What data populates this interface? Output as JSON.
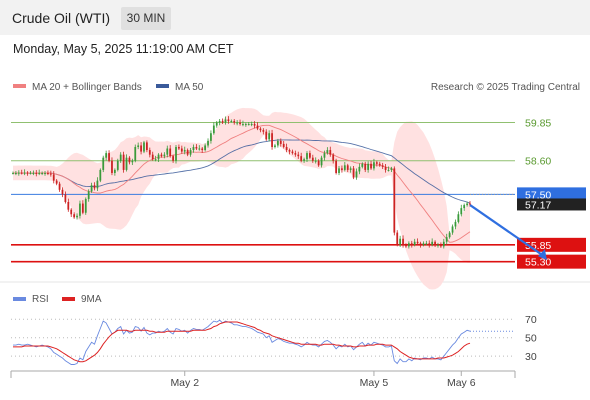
{
  "header": {
    "title": "Crude Oil (WTI)",
    "timeframe": "30 MIN"
  },
  "timestamp": "Monday, May 5, 2025 11:19:00 AM CET",
  "legend": {
    "bollinger": "MA 20 + Bollinger Bands",
    "ma50": "MA 50",
    "rsi": "RSI",
    "ma9": "9MA",
    "credit": "Research © 2025 Trading Central"
  },
  "colors": {
    "candle_up": "#3a9a3a",
    "candle_down": "#cc2222",
    "ma20": "#f08080",
    "ma50": "#3a5a9a",
    "band_fill": "#ffdede",
    "resistance": "#90c070",
    "support": "#dd1111",
    "current_line": "#3a7be0",
    "rsi_line": "#6a8ae0",
    "rsi_ma": "#dd2222"
  },
  "chart_data": [
    {
      "type": "candlestick",
      "y_range": [
        54.7,
        60.75
      ],
      "x_labels": [
        {
          "label": "May 2",
          "index": 59
        },
        {
          "label": "May 5",
          "index": 124
        },
        {
          "label": "May 6",
          "index": 154
        }
      ],
      "levels": [
        {
          "name": "resistance-2",
          "value": 59.85,
          "label": "59.85",
          "style": "resistance"
        },
        {
          "name": "resistance-1",
          "value": 58.6,
          "label": "58.60",
          "style": "resistance"
        },
        {
          "name": "pivot",
          "value": 57.5,
          "label": "57.50",
          "style": "pivot"
        },
        {
          "name": "support-1",
          "value": 55.85,
          "label": "55.85",
          "style": "support"
        },
        {
          "name": "support-2",
          "value": 55.3,
          "label": "55.30",
          "style": "support"
        }
      ],
      "last_price": {
        "value": 57.17,
        "label": "57.17"
      },
      "forecast_arrow": {
        "from": [
          156,
          57.15
        ],
        "to": [
          169,
          55.35
        ]
      },
      "candles_close": [
        58.2,
        58.2,
        58.21,
        58.2,
        58.21,
        58.2,
        58.2,
        58.2,
        58.18,
        58.2,
        58.2,
        58.2,
        58.18,
        58.15,
        57.95,
        57.85,
        57.65,
        57.5,
        57.25,
        57.0,
        56.85,
        56.75,
        56.8,
        57.2,
        56.9,
        57.35,
        57.6,
        57.8,
        57.7,
        57.95,
        58.3,
        58.7,
        58.85,
        58.6,
        58.2,
        58.3,
        58.6,
        58.8,
        58.3,
        58.7,
        58.55,
        58.6,
        59.05,
        59.1,
        58.9,
        59.2,
        58.95,
        58.8,
        58.65,
        58.65,
        58.8,
        58.75,
        58.8,
        59.0,
        58.75,
        58.6,
        59.05,
        59.0,
        58.9,
        58.95,
        58.8,
        58.95,
        59.05,
        59.0,
        59.0,
        58.95,
        59.1,
        59.25,
        59.5,
        59.75,
        59.85,
        59.9,
        59.85,
        59.95,
        59.9,
        59.9,
        59.85,
        59.85,
        59.8,
        59.8,
        59.8,
        59.8,
        59.8,
        59.75,
        59.65,
        59.6,
        59.55,
        59.3,
        59.5,
        59.05,
        59.1,
        59.25,
        59.15,
        59.05,
        58.95,
        58.9,
        58.85,
        58.8,
        58.75,
        58.6,
        58.65,
        58.85,
        58.7,
        58.6,
        58.6,
        58.45,
        58.7,
        58.85,
        58.95,
        58.8,
        58.6,
        58.2,
        58.35,
        58.3,
        58.45,
        58.3,
        58.35,
        58.05,
        58.25,
        58.4,
        58.5,
        58.3,
        58.5,
        58.35,
        58.55,
        58.5,
        58.45,
        58.4,
        58.3,
        58.3,
        58.35,
        56.25,
        55.85,
        56.05,
        55.85,
        55.8,
        55.9,
        55.85,
        55.95,
        55.9,
        55.85,
        55.9,
        55.9,
        55.85,
        55.95,
        55.85,
        55.85,
        55.8,
        55.95,
        56.1,
        56.25,
        56.45,
        56.6,
        56.85,
        57.05,
        57.15,
        57.2,
        57.17
      ]
    },
    {
      "type": "line",
      "name": "RSI",
      "y_range": [
        15,
        80
      ],
      "y_ticks": [
        70,
        50,
        30
      ],
      "rsi": [
        42,
        42,
        43,
        42,
        42,
        43,
        42,
        41,
        40,
        41,
        42,
        41,
        40,
        38,
        34,
        32,
        30,
        28,
        25,
        23,
        21,
        21,
        22,
        28,
        26,
        35,
        40,
        45,
        43,
        52,
        60,
        68,
        66,
        60,
        54,
        56,
        60,
        62,
        54,
        58,
        55,
        56,
        62,
        61,
        57,
        61,
        55,
        53,
        55,
        55,
        57,
        56,
        57,
        60,
        56,
        54,
        60,
        59,
        57,
        58,
        55,
        58,
        60,
        59,
        59,
        58,
        60,
        62,
        65,
        68,
        67,
        69,
        66,
        68,
        67,
        66,
        64,
        64,
        63,
        62,
        62,
        61,
        60,
        58,
        56,
        55,
        54,
        50,
        52,
        45,
        47,
        49,
        48,
        46,
        45,
        44,
        44,
        43,
        42,
        40,
        42,
        45,
        43,
        42,
        42,
        40,
        43,
        46,
        47,
        45,
        42,
        38,
        41,
        40,
        43,
        40,
        41,
        37,
        40,
        43,
        45,
        41,
        44,
        42,
        45,
        44,
        43,
        42,
        40,
        40,
        41,
        25,
        22,
        27,
        24,
        24,
        27,
        25,
        28,
        27,
        26,
        28,
        28,
        27,
        29,
        27,
        27,
        26,
        30,
        34,
        38,
        42,
        45,
        50,
        54,
        56,
        58,
        57
      ],
      "ma9": [
        40,
        40,
        40,
        40,
        41,
        41,
        41,
        41,
        41,
        41,
        41,
        41,
        41,
        40,
        39,
        38,
        36,
        34,
        32,
        30,
        28,
        26,
        25,
        24,
        24,
        25,
        27,
        29,
        31,
        34,
        38,
        43,
        47,
        51,
        54,
        56,
        58,
        58,
        58,
        58,
        57,
        57,
        58,
        58,
        58,
        58,
        58,
        57,
        57,
        56,
        56,
        56,
        56,
        57,
        57,
        57,
        57,
        57,
        57,
        57,
        57,
        57,
        58,
        58,
        58,
        58,
        58,
        59,
        60,
        62,
        63,
        65,
        66,
        67,
        67,
        67,
        67,
        67,
        66,
        65,
        64,
        63,
        62,
        61,
        59,
        58,
        56,
        55,
        54,
        52,
        51,
        50,
        49,
        48,
        47,
        46,
        45,
        44,
        44,
        43,
        43,
        43,
        43,
        43,
        43,
        42,
        42,
        43,
        43,
        43,
        43,
        42,
        42,
        41,
        41,
        41,
        41,
        40,
        40,
        41,
        41,
        41,
        42,
        42,
        42,
        43,
        43,
        43,
        42,
        42,
        42,
        40,
        38,
        35,
        33,
        31,
        29,
        28,
        27,
        27,
        27,
        27,
        27,
        27,
        27,
        27,
        28,
        28,
        28,
        29,
        30,
        31,
        33,
        35,
        38,
        41,
        43,
        44
      ]
    }
  ]
}
